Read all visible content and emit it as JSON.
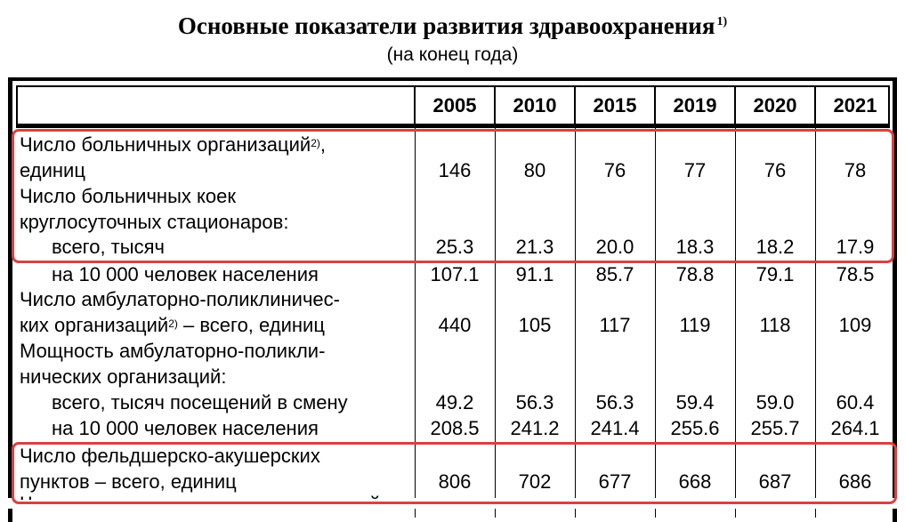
{
  "title": "Основные показатели развития здравоохранения",
  "title_note": "1)",
  "subtitle": "(на конец года)",
  "years": [
    "2005",
    "2010",
    "2015",
    "2019",
    "2020",
    "2021"
  ],
  "labels": {
    "hosp_org_1": "Число больничных организаций",
    "hosp_org_note": "2)",
    "hosp_org_comma": ",",
    "hosp_org_2": "единиц",
    "beds_1": "Число больничных коек",
    "beds_2": "круглосуточных стационаров:",
    "beds_total": "всего, тысяч",
    "beds_per": "на 10 000 человек населения",
    "amb_1": "Число амбулаторно-поликлиничес-",
    "amb_2a": "ких организаций",
    "amb_note": "2)",
    "amb_2b": " – всего, единиц",
    "cap_1": "Мощность амбулаторно-поликли-",
    "cap_2": "нических организаций:",
    "cap_total": "всего, тысяч посещений в смену",
    "cap_per": "на 10 000 человек населения",
    "feld_1": "Число фельдшерско-акушерских",
    "feld_2": "пунктов – всего, единиц"
  },
  "values": {
    "hosp_org": [
      "146",
      "80",
      "76",
      "77",
      "76",
      "78"
    ],
    "beds_total": [
      "25.3",
      "21.3",
      "20.0",
      "18.3",
      "18.2",
      "17.9"
    ],
    "beds_per": [
      "107.1",
      "91.1",
      "85.7",
      "78.8",
      "79.1",
      "78.5"
    ],
    "amb": [
      "440",
      "105",
      "117",
      "119",
      "118",
      "109"
    ],
    "cap_total": [
      "49.2",
      "56.3",
      "56.3",
      "59.4",
      "59.0",
      "60.4"
    ],
    "cap_per": [
      "208.5",
      "241.2",
      "241.4",
      "255.6",
      "255.7",
      "264.1"
    ],
    "feld": [
      "806",
      "702",
      "677",
      "668",
      "687",
      "686"
    ]
  },
  "cut_text": "Численность медицинских организаций",
  "highlight_color": "#d9413f"
}
